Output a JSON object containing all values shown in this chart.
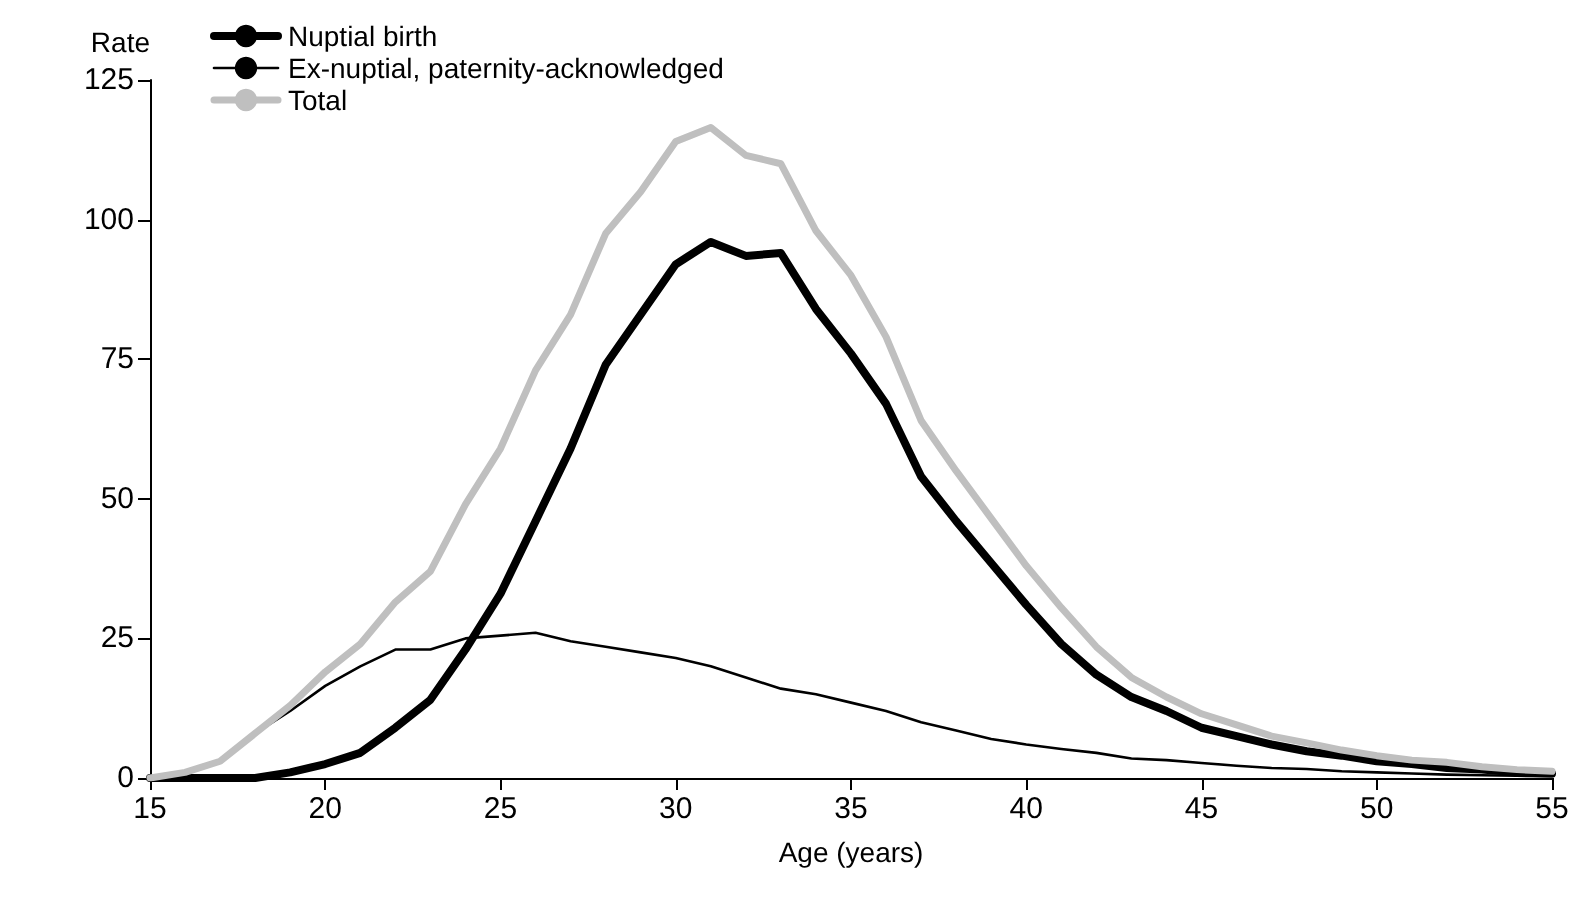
{
  "chart_data": {
    "type": "line",
    "xlabel": "Age (years)",
    "ylabel": "Rate",
    "x": [
      15,
      16,
      17,
      18,
      19,
      20,
      21,
      22,
      23,
      24,
      25,
      26,
      27,
      28,
      29,
      30,
      31,
      32,
      33,
      34,
      35,
      36,
      37,
      38,
      39,
      40,
      41,
      42,
      43,
      44,
      45,
      46,
      47,
      48,
      49,
      50,
      51,
      52,
      53,
      54,
      55
    ],
    "series": [
      {
        "name": "Nuptial birth",
        "color": "#000000",
        "values": [
          0,
          0,
          0,
          0,
          1,
          2.5,
          4.5,
          9,
          14,
          23,
          33,
          46,
          59,
          74,
          83,
          92,
          96,
          93.5,
          94,
          84,
          76,
          67,
          54,
          46,
          38.5,
          31,
          24,
          18.5,
          14.5,
          12,
          9,
          7.5,
          6,
          4.8,
          4,
          3,
          2.5,
          1.8,
          1.5,
          1,
          0.8
        ]
      },
      {
        "name": "Ex-nuptial, paternity-acknowledged",
        "color": "#000000",
        "values": [
          0,
          1,
          3,
          8,
          12,
          16.5,
          20,
          23,
          23,
          25,
          25.5,
          26,
          24.5,
          23.5,
          22.5,
          21.5,
          20,
          18,
          16,
          15,
          13.5,
          12,
          10,
          8.5,
          7,
          6,
          5.2,
          4.5,
          3.5,
          3.2,
          2.7,
          2.2,
          1.8,
          1.6,
          1.2,
          1,
          0.8,
          0.6,
          0.5,
          0.4,
          0.3
        ]
      },
      {
        "name": "Total",
        "color": "#bfbfbf",
        "values": [
          0,
          1,
          3,
          8,
          13,
          19,
          24,
          31.5,
          37,
          49,
          59,
          73,
          83,
          97.5,
          105,
          114,
          116.5,
          111.5,
          110,
          98,
          90,
          79,
          64,
          55,
          46.5,
          38,
          30.5,
          23.5,
          18,
          14.5,
          11.5,
          9.5,
          7.5,
          6.3,
          5,
          4,
          3.2,
          2.8,
          2,
          1.5,
          1.2
        ]
      }
    ],
    "xlim": [
      15,
      55
    ],
    "xticks": [
      15,
      20,
      25,
      30,
      35,
      40,
      45,
      50,
      55
    ],
    "ylim": [
      0,
      125
    ],
    "yticks": [
      0,
      25,
      50,
      75,
      100,
      125
    ],
    "grid": false,
    "legend": "top left",
    "marker": "none",
    "line_style": "solid"
  }
}
